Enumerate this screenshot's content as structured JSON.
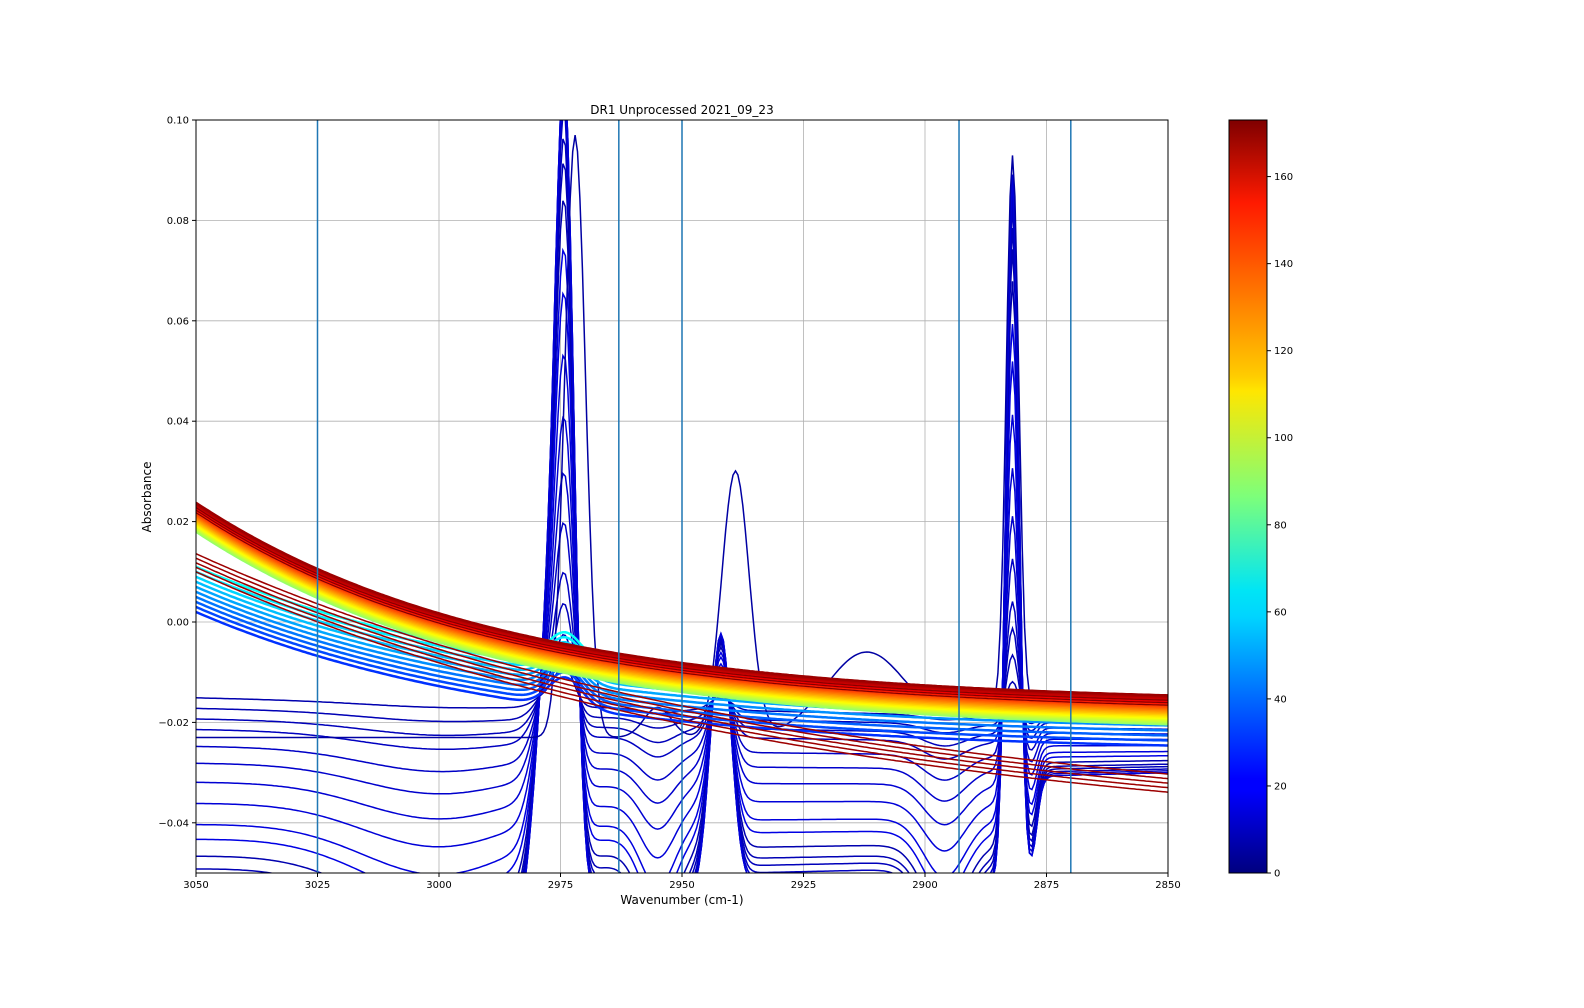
{
  "chart_data": {
    "type": "line",
    "title": "DR1 Unprocessed 2021_09_23",
    "xlabel": "Wavenumber (cm-1)",
    "ylabel": "Absorbance",
    "xlim": [
      3050,
      2850
    ],
    "ylim": [
      -0.05,
      0.1
    ],
    "x_reversed": true,
    "grid": true,
    "x_ticks": [
      3050,
      3025,
      3000,
      2975,
      2950,
      2925,
      2900,
      2875,
      2850
    ],
    "x_tick_labels": [
      "3050",
      "3025",
      "3000",
      "2975",
      "2950",
      "2925",
      "2900",
      "2875",
      "2850"
    ],
    "y_ticks": [
      -0.04,
      -0.02,
      0.0,
      0.02,
      0.04,
      0.06,
      0.08,
      0.1
    ],
    "y_tick_labels": [
      "−0.04",
      "−0.02",
      "0.00",
      "0.02",
      "0.04",
      "0.06",
      "0.08",
      "0.10"
    ],
    "vertical_lines": [
      3025,
      2963,
      2950,
      2893,
      2870
    ],
    "vertical_line_color": "#1f77b4",
    "colorbar": {
      "colormap": "jet",
      "range": [
        0,
        173
      ],
      "ticks": [
        0,
        20,
        40,
        60,
        80,
        100,
        120,
        140,
        160
      ],
      "tick_labels": [
        "0",
        "20",
        "40",
        "60",
        "80",
        "100",
        "120",
        "140",
        "160"
      ]
    },
    "series_groups": [
      {
        "colormap_value": 5,
        "description_x": [
          3050,
          3040,
          3030,
          3020,
          3010,
          3000,
          2990,
          2985,
          2980,
          2977,
          2975,
          2973,
          2970,
          2965,
          2960,
          2955,
          2950,
          2945,
          2942,
          2940,
          2938,
          2935,
          2930,
          2925,
          2920,
          2910,
          2900,
          2895,
          2890,
          2886,
          2883,
          2881,
          2880,
          2879,
          2877,
          2875,
          2873,
          2870,
          2865,
          2860,
          2850
        ],
        "baseline": [
          -0.015,
          -0.022,
          -0.027,
          -0.029,
          -0.03,
          -0.031,
          -0.028,
          -0.022,
          -0.008,
          0.01,
          0.03,
          0.01,
          -0.012,
          -0.028,
          -0.032,
          -0.033,
          -0.028,
          -0.015,
          -0.008,
          -0.01,
          -0.015,
          -0.022,
          -0.028,
          -0.032,
          -0.034,
          -0.035,
          -0.038,
          -0.04,
          -0.036,
          -0.025,
          -0.01,
          -0.008,
          -0.02,
          -0.03,
          -0.04,
          -0.042,
          -0.041,
          -0.042,
          -0.042,
          -0.042,
          -0.042
        ]
      }
    ]
  }
}
